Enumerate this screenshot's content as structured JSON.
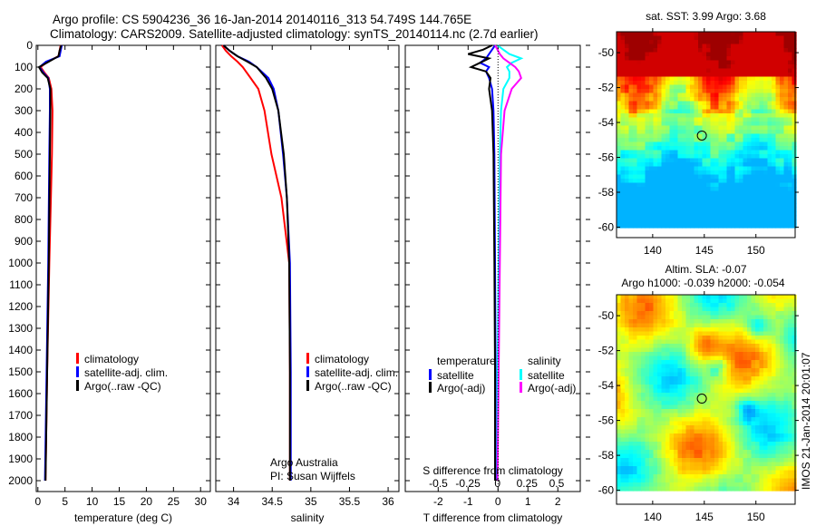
{
  "title_line1": "Argo profile: CS 5904236_36 16-Jan-2014 20140116_313 54.749S 144.765E",
  "title_line2": "Climatology: CARS2009. Satellite-adjusted climatology: synTS_20140114.nc (2.7d earlier)",
  "credit": "IMOS 21-Jan-2014 20:01:07",
  "colors": {
    "climatology": "#ff0000",
    "satellite": "#0000ff",
    "argo": "#000000",
    "sal_satellite": "#00ffff",
    "sal_argo": "#ff00ff"
  },
  "chart_data": [
    {
      "type": "line",
      "xlabel": "temperature (deg C)",
      "ylim": [
        0,
        2050
      ],
      "xlim": [
        -0.3,
        31.8
      ],
      "xticks": [
        0,
        5,
        10,
        15,
        20,
        25,
        30
      ],
      "yticks": [
        0,
        100,
        200,
        300,
        400,
        500,
        600,
        700,
        800,
        900,
        1000,
        1100,
        1200,
        1300,
        1400,
        1500,
        1600,
        1700,
        1800,
        1900,
        2000
      ],
      "depth": [
        0,
        25,
        50,
        75,
        100,
        125,
        150,
        200,
        300,
        500,
        1000,
        1500,
        2000
      ],
      "series": [
        {
          "name": "climatology",
          "color": "#ff0000",
          "values": [
            4.2,
            4.0,
            3.8,
            1.8,
            0.5,
            1.2,
            2.0,
            2.5,
            2.7,
            2.6,
            2.1,
            1.7,
            1.4
          ]
        },
        {
          "name": "satellite-adj. clim.",
          "color": "#0000ff",
          "values": [
            4.4,
            4.2,
            4.0,
            1.5,
            0.3,
            1.0,
            1.9,
            2.2,
            2.2,
            2.1,
            1.9,
            1.6,
            1.3
          ]
        },
        {
          "name": "Argo(..raw -QC)",
          "color": "#000000",
          "values": [
            4.3,
            4.0,
            3.8,
            2.0,
            0.2,
            0.8,
            1.8,
            2.3,
            2.3,
            2.2,
            2.0,
            1.7,
            1.4
          ]
        }
      ]
    },
    {
      "type": "line",
      "xlabel": "salinity",
      "ylim": [
        0,
        2050
      ],
      "xlim": [
        33.77,
        36.14
      ],
      "xticks": [
        34,
        34.5,
        35,
        35.5,
        36
      ],
      "depth": [
        0,
        25,
        50,
        75,
        100,
        150,
        200,
        300,
        500,
        700,
        1000,
        1500,
        2000
      ],
      "series": [
        {
          "name": "climatology",
          "color": "#ff0000",
          "values": [
            33.85,
            33.9,
            33.97,
            34.05,
            34.12,
            34.22,
            34.32,
            34.4,
            34.49,
            34.62,
            34.72,
            34.73,
            34.73
          ]
        },
        {
          "name": "satellite-adj. clim.",
          "color": "#0000ff",
          "values": [
            33.87,
            33.95,
            34.05,
            34.2,
            34.3,
            34.45,
            34.52,
            34.58,
            34.64,
            34.69,
            34.73,
            34.74,
            34.74
          ]
        },
        {
          "name": "Argo(..raw -QC)",
          "color": "#000000",
          "values": [
            33.87,
            33.95,
            34.05,
            34.18,
            34.3,
            34.42,
            34.5,
            34.58,
            34.65,
            34.69,
            34.72,
            34.73,
            34.73
          ]
        }
      ],
      "annotation": [
        "Argo Australia",
        "PI: Susan Wijffels"
      ]
    },
    {
      "type": "line",
      "xlabel": "T difference from climatology",
      "xlabel2": "S difference from climatology",
      "ylim": [
        0,
        2050
      ],
      "xlim": [
        -3.1,
        2.75
      ],
      "xticks": [
        -2,
        -1,
        0,
        1,
        2
      ],
      "x2lim": [
        -0.78,
        0.7
      ],
      "x2ticks": [
        "-0.5",
        "-0.25",
        "0",
        "0.25",
        "0.5"
      ],
      "x2tickvals": [
        -0.5,
        -0.25,
        0,
        0.25,
        0.5
      ],
      "depth": [
        0,
        20,
        40,
        60,
        80,
        100,
        120,
        150,
        200,
        300,
        500,
        1000,
        1500,
        2000
      ],
      "legend_headers": [
        "temperature",
        "salinity"
      ],
      "series": [
        {
          "name": "satellite",
          "group": "temperature",
          "axis": "T",
          "color": "#0000ff",
          "values": [
            -0.1,
            -0.2,
            -0.3,
            -0.4,
            -0.6,
            -0.3,
            -0.4,
            -0.3,
            -0.2,
            -0.15,
            -0.12,
            -0.1,
            -0.08,
            -0.08
          ]
        },
        {
          "name": "Argo(-adj)",
          "group": "temperature",
          "axis": "T",
          "color": "#000000",
          "values": [
            -0.2,
            -0.5,
            -1.0,
            -0.3,
            -0.6,
            -0.9,
            -0.4,
            -0.25,
            -0.3,
            -0.2,
            -0.15,
            -0.12,
            -0.1,
            -0.1
          ]
        },
        {
          "name": "satellite",
          "group": "salinity",
          "axis": "S",
          "color": "#00ffff",
          "values": [
            0.0,
            0.05,
            0.1,
            0.2,
            0.12,
            0.08,
            0.1,
            0.1,
            0.05,
            0.03,
            0.02,
            0.01,
            0.0,
            0.0
          ]
        },
        {
          "name": "Argo(-adj)",
          "group": "salinity",
          "axis": "S",
          "color": "#ff00ff",
          "values": [
            -0.02,
            0.0,
            0.02,
            0.05,
            0.1,
            0.15,
            0.18,
            0.2,
            0.12,
            0.06,
            0.03,
            0.02,
            0.01,
            0.0
          ]
        }
      ]
    },
    {
      "type": "heatmap",
      "title": "sat. SST: 3.99 Argo: 3.68",
      "xlim": [
        136.5,
        153.8
      ],
      "ylim": [
        -60.6,
        -48.8
      ],
      "xticks": [
        140,
        145,
        150
      ],
      "yticks": [
        -50,
        -52,
        -54,
        -56,
        -58,
        -60
      ],
      "marker": {
        "lon": 144.765,
        "lat": -54.749
      }
    },
    {
      "type": "heatmap",
      "title": "Altim. SLA: -0.07",
      "subtitle": "Argo h1000: -0.039 h2000: -0.054",
      "xlim": [
        136.5,
        153.8
      ],
      "ylim": [
        -60.8,
        -48.8
      ],
      "xticks": [
        140,
        145,
        150
      ],
      "yticks": [
        -50,
        -52,
        -54,
        -56,
        -58,
        -60
      ],
      "marker": {
        "lon": 144.765,
        "lat": -54.749
      }
    }
  ]
}
